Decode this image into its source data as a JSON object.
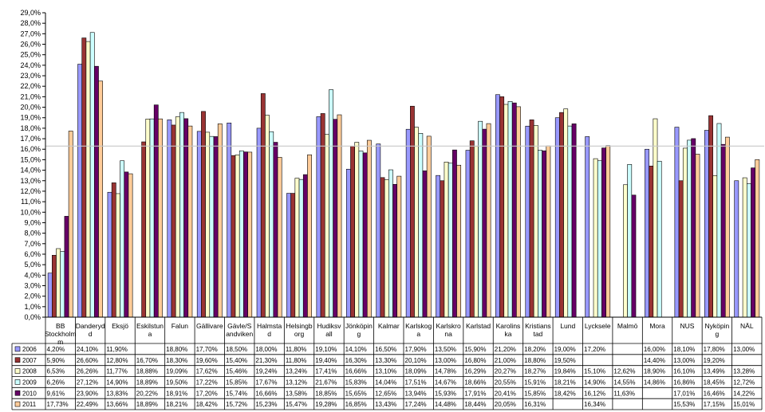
{
  "chart_data": {
    "type": "bar",
    "title": "",
    "xlabel": "",
    "ylabel": "",
    "ylim": [
      0,
      29
    ],
    "y_tick_step": 1,
    "y_tick_format": "percent-1dec-comma",
    "grid": false,
    "legend": "data-table-left",
    "reference_line": {
      "value": 16.3,
      "color": "#c8c8c8"
    },
    "categories": [
      "BB Stockholm",
      "Danderyd",
      "Eksjö",
      "Eskilstuna",
      "Falun",
      "Gällivare",
      "Gävle/Sandviken",
      "Halmstad",
      "Helsingborg",
      "Hudiksvall",
      "Jönköping",
      "Kalmar",
      "Karlskoga",
      "Karlskrona",
      "Karlstad",
      "Karolinska",
      "Kristianstad",
      "Lund",
      "Lycksele",
      "Malmö",
      "Mora",
      "NUS",
      "Nyköping",
      "NÄL"
    ],
    "category_labels": [
      [
        "BB",
        "Stockholm",
        "m"
      ],
      [
        "Danderyd",
        "d"
      ],
      [
        "Eksjö"
      ],
      [
        "Eskilstun",
        "a"
      ],
      [
        "Falun"
      ],
      [
        "Gällivare"
      ],
      [
        "Gävle/S",
        "andviken"
      ],
      [
        "Halmsta",
        "d"
      ],
      [
        "Helsingb",
        "org"
      ],
      [
        "Hudiksv",
        "all"
      ],
      [
        "Jönköpin",
        "g"
      ],
      [
        "Kalmar"
      ],
      [
        "Karlskog",
        "a"
      ],
      [
        "Karlskro",
        "na"
      ],
      [
        "Karlstad"
      ],
      [
        "Karolins",
        "ka"
      ],
      [
        "Kristians",
        "tad"
      ],
      [
        "Lund"
      ],
      [
        "Lycksele"
      ],
      [
        "Malmö"
      ],
      [
        "Mora"
      ],
      [
        "NUS"
      ],
      [
        "Nyköpin",
        "g"
      ],
      [
        "NÄL"
      ]
    ],
    "series": [
      {
        "name": "2006",
        "color": "#9999ff",
        "values": [
          4.2,
          24.1,
          11.9,
          null,
          18.8,
          17.7,
          18.5,
          18.0,
          11.8,
          19.1,
          14.1,
          16.5,
          17.9,
          13.5,
          15.9,
          21.2,
          18.2,
          19.0,
          17.2,
          null,
          16.0,
          18.1,
          17.8,
          13.0
        ],
        "labels": [
          "4,20%",
          "24,10%",
          "11,90%",
          "",
          "18,80%",
          "17,70%",
          "18,50%",
          "18,00%",
          "11,80%",
          "19,10%",
          "14,10%",
          "16,50%",
          "17,90%",
          "13,50%",
          "15,90%",
          "21,20%",
          "18,20%",
          "19,00%",
          "17,20%",
          "",
          "16,00%",
          "18,10%",
          "17,80%",
          "13,00%"
        ]
      },
      {
        "name": "2007",
        "color": "#993333",
        "values": [
          5.9,
          26.6,
          12.8,
          16.7,
          18.3,
          19.6,
          15.4,
          21.3,
          11.8,
          19.4,
          16.3,
          13.3,
          20.1,
          13.0,
          16.8,
          21.0,
          18.8,
          19.5,
          null,
          null,
          14.4,
          13.0,
          19.2,
          null
        ],
        "labels": [
          "5,90%",
          "26,60%",
          "12,80%",
          "16,70%",
          "18,30%",
          "19,60%",
          "15,40%",
          "21,30%",
          "11,80%",
          "19,40%",
          "16,30%",
          "13,30%",
          "20,10%",
          "13,00%",
          "16,80%",
          "21,00%",
          "18,80%",
          "19,50%",
          "",
          "",
          "14,40%",
          "13,00%",
          "19,20%",
          ""
        ]
      },
      {
        "name": "2008",
        "color": "#ffffcc",
        "values": [
          6.53,
          26.26,
          11.77,
          18.88,
          19.09,
          17.62,
          15.46,
          19.24,
          13.24,
          17.41,
          16.66,
          13.1,
          18.09,
          14.78,
          16.29,
          20.27,
          18.27,
          19.84,
          15.1,
          12.62,
          18.9,
          16.1,
          13.49,
          13.28
        ],
        "labels": [
          "6,53%",
          "26,26%",
          "11,77%",
          "18,88%",
          "19,09%",
          "17,62%",
          "15,46%",
          "19,24%",
          "13,24%",
          "17,41%",
          "16,66%",
          "13,10%",
          "18,09%",
          "14,78%",
          "16,29%",
          "20,27%",
          "18,27%",
          "19,84%",
          "15,10%",
          "12,62%",
          "18,90%",
          "16,10%",
          "13,49%",
          "13,28%"
        ]
      },
      {
        "name": "2009",
        "color": "#ccffff",
        "values": [
          6.26,
          27.12,
          14.9,
          18.89,
          19.5,
          17.22,
          15.85,
          17.67,
          13.12,
          21.67,
          15.83,
          14.04,
          17.51,
          14.67,
          18.66,
          20.55,
          15.91,
          18.21,
          14.9,
          14.55,
          14.86,
          16.86,
          18.45,
          12.72
        ],
        "labels": [
          "6,26%",
          "27,12%",
          "14,90%",
          "18,89%",
          "19,50%",
          "17,22%",
          "15,85%",
          "17,67%",
          "13,12%",
          "21,67%",
          "15,83%",
          "14,04%",
          "17,51%",
          "14,67%",
          "18,66%",
          "20,55%",
          "15,91%",
          "18,21%",
          "14,90%",
          "14,55%",
          "14,86%",
          "16,86%",
          "18,45%",
          "12,72%"
        ]
      },
      {
        "name": "2010",
        "color": "#660066",
        "values": [
          9.61,
          23.9,
          13.83,
          20.22,
          18.91,
          17.2,
          15.74,
          16.66,
          13.58,
          18.85,
          15.65,
          12.65,
          13.94,
          15.93,
          17.91,
          20.41,
          15.85,
          18.42,
          16.12,
          11.63,
          null,
          17.01,
          16.46,
          14.22
        ],
        "labels": [
          "9,61%",
          "23,90%",
          "13,83%",
          "20,22%",
          "18,91%",
          "17,20%",
          "15,74%",
          "16,66%",
          "13,58%",
          "18,85%",
          "15,65%",
          "12,65%",
          "13,94%",
          "15,93%",
          "17,91%",
          "20,41%",
          "15,85%",
          "18,42%",
          "16,12%",
          "11,63%",
          "",
          "17,01%",
          "16,46%",
          "14,22%"
        ]
      },
      {
        "name": "2011",
        "color": "#ffcc99",
        "values": [
          17.73,
          22.49,
          13.66,
          18.89,
          18.21,
          18.42,
          15.72,
          15.23,
          15.47,
          19.28,
          16.85,
          13.43,
          17.24,
          14.48,
          18.44,
          20.05,
          16.31,
          null,
          16.34,
          null,
          null,
          15.53,
          17.15,
          15.01
        ],
        "labels": [
          "17,73%",
          "22,49%",
          "13,66%",
          "18,89%",
          "18,21%",
          "18,42%",
          "15,72%",
          "15,23%",
          "15,47%",
          "19,28%",
          "16,85%",
          "13,43%",
          "17,24%",
          "14,48%",
          "18,44%",
          "20,05%",
          "16,31%",
          "",
          "16,34%",
          "",
          "",
          "15,53%",
          "17,15%",
          "15,01%"
        ]
      }
    ]
  }
}
